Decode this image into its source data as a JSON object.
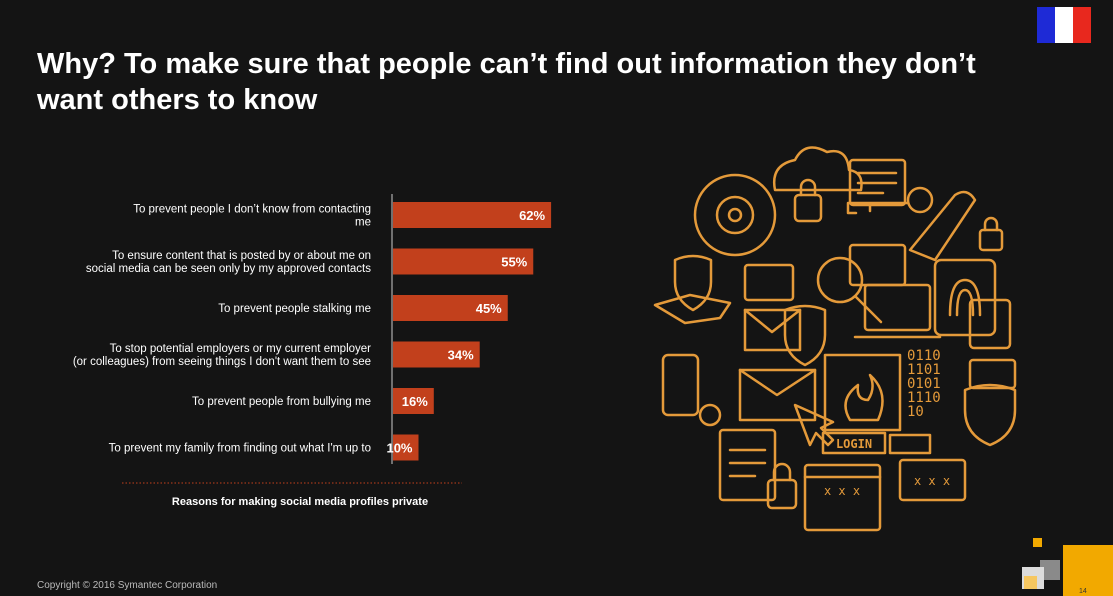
{
  "title": "Why? To make sure that people can’t find out information they don’t want others to know",
  "flag": {
    "colors": [
      "#1e2ad6",
      "#ffffff",
      "#e8281e"
    ],
    "name": "france-flag-icon"
  },
  "chart_data": {
    "type": "bar",
    "orientation": "horizontal",
    "categories": [
      [
        "To prevent people I don’t know from contacting",
        "me"
      ],
      [
        "To ensure content that is posted by or about me on",
        "social media can be seen only by my approved contacts"
      ],
      [
        "To prevent people stalking me"
      ],
      [
        "To stop potential employers or my current employer",
        "(or colleagues) from seeing things I don't want them to see"
      ],
      [
        "To prevent people from bullying me"
      ],
      [
        "To prevent my family from finding out what I'm up to"
      ]
    ],
    "values": [
      62,
      55,
      45,
      34,
      16,
      10
    ],
    "value_labels": [
      "62%",
      "55%",
      "45%",
      "34%",
      "16%",
      "10%"
    ],
    "bar_color": "#c2401c",
    "xlim": [
      0,
      100
    ],
    "caption": "Reasons for making social media profiles private"
  },
  "illustration": {
    "name": "cyber-security-icons-illustration",
    "stroke_color": "#e49a3a",
    "login_text": "LOGIN",
    "binary_lines": [
      "0110",
      "1101",
      "0101",
      "1110",
      "10"
    ]
  },
  "copyright": "Copyright © 2016 Symantec Corporation",
  "page_number": "14",
  "corner_colors": [
    "#f2a900",
    "#f6c760",
    "#8a8a8a",
    "#dcdcdc",
    "#fff2cc"
  ]
}
